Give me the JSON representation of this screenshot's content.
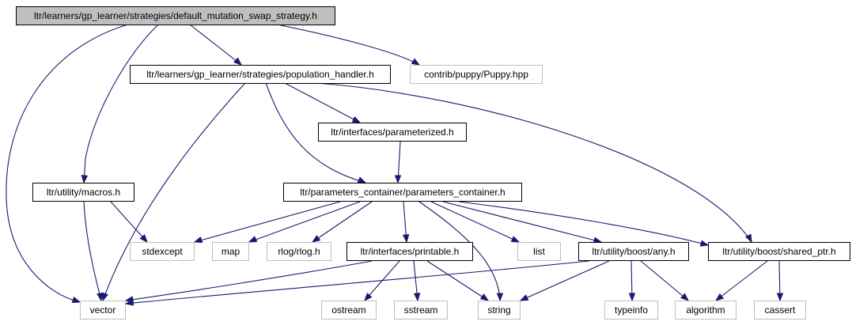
{
  "graph": {
    "edge_color": "#191970",
    "root_fill": "#bfbfbf",
    "external_border": "#bfbfbf",
    "nodes": {
      "root": "ltr/learners/gp_learner/strategies/default_mutation_swap_strategy.h",
      "population_handler": "ltr/learners/gp_learner/strategies/population_handler.h",
      "puppy": "contrib/puppy/Puppy.hpp",
      "parameterized": "ltr/interfaces/parameterized.h",
      "macros": "ltr/utility/macros.h",
      "parameters_container": "ltr/parameters_container/parameters_container.h",
      "stdexcept": "stdexcept",
      "map": "map",
      "rlog": "rlog/rlog.h",
      "printable": "ltr/interfaces/printable.h",
      "list": "list",
      "any": "ltr/utility/boost/any.h",
      "shared_ptr": "ltr/utility/boost/shared_ptr.h",
      "vector": "vector",
      "ostream": "ostream",
      "sstream": "sstream",
      "string": "string",
      "typeinfo": "typeinfo",
      "algorithm": "algorithm",
      "cassert": "cassert"
    }
  }
}
